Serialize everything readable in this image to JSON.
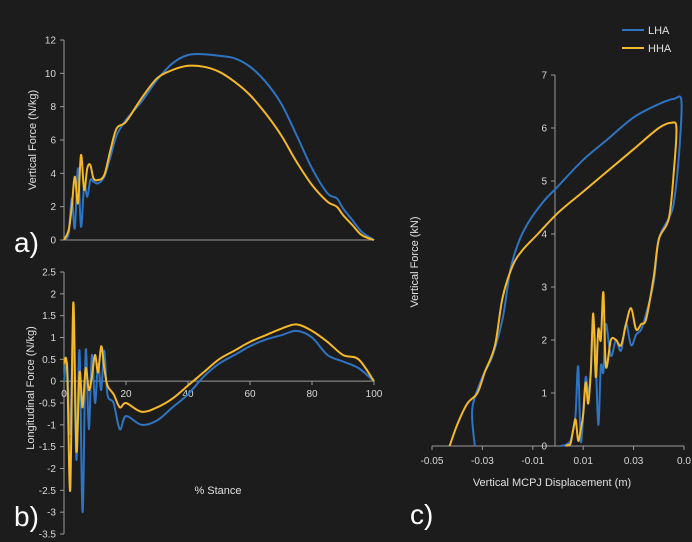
{
  "colors": {
    "background": "#1c1c1c",
    "axis": "#9a9a9a",
    "text": "#dcdcdc",
    "LHA": "#2e74c2",
    "HHA": "#f4b82a"
  },
  "legend": {
    "placement": "top-right",
    "entries": [
      "LHA",
      "HHA"
    ]
  },
  "chart_data": [
    {
      "panel": "a)",
      "type": "line",
      "xlabel": "",
      "ylabel": "Vertical Force (N/kg)",
      "xlim": [
        0,
        100
      ],
      "ylim": [
        0,
        12
      ],
      "yticks": [
        "0",
        "2",
        "4",
        "6",
        "8",
        "10",
        "12"
      ],
      "xticks": [],
      "series": [
        {
          "name": "LHA",
          "x": [
            0,
            1.5,
            2.5,
            3.5,
            4.5,
            5.5,
            6.5,
            7.5,
            8.5,
            9.5,
            11,
            13,
            15,
            17,
            20,
            25,
            30,
            35,
            40,
            45,
            50,
            55,
            60,
            65,
            70,
            75,
            80,
            85,
            88,
            90,
            93,
            96,
            100
          ],
          "y": [
            0,
            0.4,
            2.5,
            0.7,
            4.3,
            0.8,
            3.3,
            2.6,
            3.6,
            3.5,
            3.4,
            3.8,
            5.0,
            6.3,
            7.2,
            8.3,
            9.6,
            10.6,
            11.1,
            11.15,
            11.05,
            10.9,
            10.4,
            9.5,
            8.2,
            6.3,
            4.3,
            2.8,
            2.5,
            1.9,
            1.2,
            0.5,
            0
          ]
        },
        {
          "name": "HHA",
          "x": [
            0,
            1.5,
            2.5,
            3.5,
            4.5,
            5.5,
            6.5,
            7.5,
            8.5,
            9.5,
            11,
            13,
            15,
            17,
            20,
            25,
            30,
            35,
            40,
            45,
            50,
            55,
            60,
            65,
            70,
            75,
            80,
            85,
            88,
            90,
            93,
            96,
            100
          ],
          "y": [
            0,
            0.6,
            2.0,
            3.8,
            2.2,
            5.1,
            3.0,
            4.3,
            4.5,
            3.7,
            3.6,
            3.9,
            5.4,
            6.7,
            7.1,
            8.5,
            9.7,
            10.2,
            10.45,
            10.4,
            10.1,
            9.5,
            8.7,
            7.6,
            6.3,
            4.7,
            3.3,
            2.3,
            2.0,
            1.5,
            0.9,
            0.3,
            0
          ]
        }
      ]
    },
    {
      "panel": "b)",
      "type": "line",
      "xlabel": "% Stance",
      "ylabel": "Longitudinal Force (N/kg)",
      "xlim": [
        0,
        100
      ],
      "ylim": [
        -3.5,
        2.5
      ],
      "yticks": [
        "2.5",
        "2",
        "1.5",
        "1",
        "0.5",
        "0",
        "-0.5",
        "-1",
        "-1.5",
        "-2",
        "-2.5",
        "-3",
        "-3.5"
      ],
      "xticks": [
        "0",
        "20",
        "40",
        "60",
        "80",
        "100"
      ],
      "series": [
        {
          "name": "LHA",
          "x": [
            0,
            1,
            2,
            3,
            4,
            5,
            6,
            7,
            8,
            9,
            10,
            11,
            12,
            13,
            14,
            16,
            18,
            20,
            25,
            30,
            35,
            40,
            45,
            50,
            55,
            60,
            65,
            70,
            75,
            80,
            85,
            90,
            95,
            100
          ],
          "y": [
            0,
            0.4,
            -1.2,
            1.3,
            -1.8,
            0.7,
            -3.0,
            0.7,
            -1.1,
            0.6,
            -0.5,
            0.4,
            -0.2,
            0.7,
            -0.3,
            -0.5,
            -1.1,
            -0.8,
            -1.0,
            -0.9,
            -0.6,
            -0.3,
            0.1,
            0.4,
            0.6,
            0.8,
            0.95,
            1.05,
            1.15,
            1.0,
            0.6,
            0.45,
            0.3,
            0
          ]
        },
        {
          "name": "HHA",
          "x": [
            0,
            1,
            2,
            3,
            4,
            5,
            6,
            7,
            8,
            9,
            10,
            11,
            12,
            13,
            14,
            16,
            18,
            20,
            25,
            30,
            35,
            40,
            45,
            50,
            55,
            60,
            65,
            70,
            75,
            80,
            85,
            90,
            95,
            100
          ],
          "y": [
            0.4,
            0.3,
            -2.5,
            1.8,
            -1.6,
            0.2,
            -0.6,
            0.3,
            -0.2,
            0.1,
            0.6,
            0.2,
            0.8,
            0.3,
            -0.1,
            -0.3,
            -0.6,
            -0.5,
            -0.7,
            -0.6,
            -0.4,
            -0.1,
            0.2,
            0.5,
            0.7,
            0.9,
            1.05,
            1.2,
            1.3,
            1.15,
            0.9,
            0.6,
            0.5,
            0
          ]
        }
      ]
    },
    {
      "panel": "c)",
      "type": "line",
      "xlabel": "Vertical MCPJ Displacement (m)",
      "ylabel": "Vertical Force (kN)",
      "xlim": [
        -0.05,
        0.05
      ],
      "ylim": [
        0,
        7
      ],
      "yticks": [
        "0",
        "1",
        "2",
        "3",
        "4",
        "5",
        "6",
        "7"
      ],
      "xticks": [
        "-0.05",
        "-0.03",
        "-0.01",
        "0.01",
        "0.03",
        "0.0"
      ],
      "series": [
        {
          "name": "LHA",
          "x": [
            -0.033,
            -0.034,
            -0.03,
            -0.026,
            -0.022,
            -0.019,
            -0.016,
            -0.012,
            -0.006,
            0,
            0.01,
            0.02,
            0.03,
            0.04,
            0.046,
            0.049,
            0.048,
            0.046,
            0.044,
            0.04,
            0.038,
            0.035,
            0.033,
            0.031,
            0.029,
            0.027,
            0.025,
            0.023,
            0.021,
            0.019,
            0.018,
            0.017,
            0.016,
            0.015,
            0.014,
            0.013,
            0.012,
            0.011,
            0.01,
            0.009,
            0.008,
            0.007,
            0.006,
            0.005,
            0.004,
            0.003,
            0.002,
            0.001
          ],
          "y": [
            0,
            0.7,
            1.3,
            1.7,
            2.4,
            3.3,
            3.8,
            4.2,
            4.6,
            4.9,
            5.4,
            5.8,
            6.2,
            6.45,
            6.55,
            6.5,
            5.5,
            4.6,
            4.3,
            3.9,
            3.1,
            2.5,
            2.2,
            2.1,
            1.9,
            2.3,
            1.8,
            2.0,
            1.7,
            2.3,
            1.4,
            1.5,
            0.4,
            1.6,
            2.4,
            1.4,
            1.0,
            1.3,
            0.6,
            0.1,
            1.5,
            0.6,
            0.3,
            0.1,
            0.05,
            0.02,
            0.01,
            0
          ]
        },
        {
          "name": "HHA",
          "x": [
            -0.043,
            -0.04,
            -0.036,
            -0.032,
            -0.029,
            -0.025,
            -0.022,
            -0.018,
            -0.014,
            -0.008,
            0,
            0.01,
            0.02,
            0.03,
            0.04,
            0.045,
            0.047,
            0.046,
            0.044,
            0.04,
            0.038,
            0.035,
            0.033,
            0.031,
            0.029,
            0.027,
            0.025,
            0.023,
            0.021,
            0.019,
            0.018,
            0.017,
            0.016,
            0.015,
            0.014,
            0.013,
            0.012,
            0.011,
            0.01,
            0.009,
            0.008,
            0.007,
            0.006,
            0.005,
            0.004,
            0.003
          ],
          "y": [
            0,
            0.4,
            0.8,
            1.0,
            1.4,
            1.9,
            2.8,
            3.4,
            3.7,
            4.0,
            4.4,
            4.8,
            5.2,
            5.6,
            6.0,
            6.1,
            6.0,
            5.2,
            4.3,
            3.9,
            3.2,
            2.4,
            2.3,
            2.2,
            2.6,
            2.3,
            1.9,
            2.0,
            2.0,
            1.5,
            2.9,
            2.0,
            2.2,
            1.3,
            2.5,
            1.4,
            0.8,
            1.2,
            0.6,
            0.3,
            0.1,
            0.5,
            0.3,
            0.05,
            0.02,
            0
          ]
        }
      ]
    }
  ]
}
